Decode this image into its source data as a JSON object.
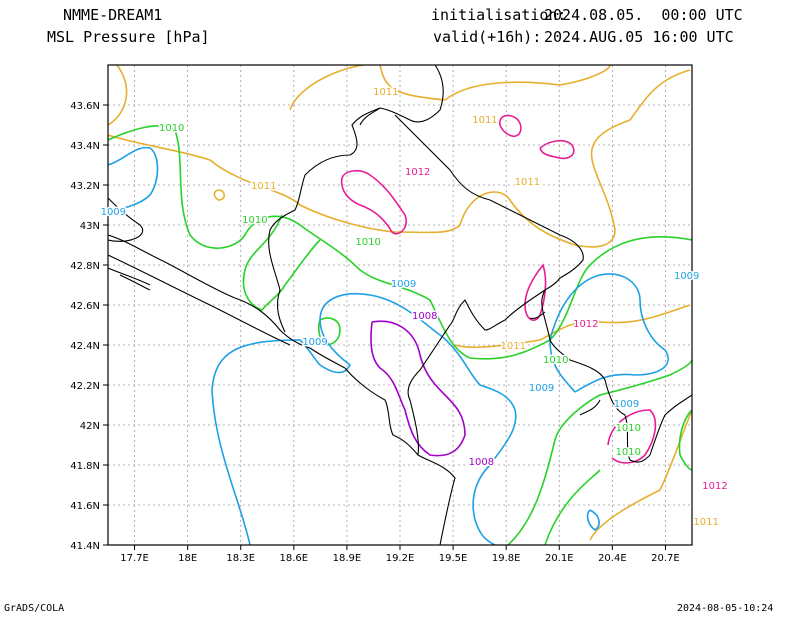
{
  "header": {
    "model": "NMME-DREAM1",
    "field": "MSL Pressure [hPa]",
    "init_label": "initialisation:",
    "init_value": "2024.08.05.  00:00 UTC",
    "valid_label": "valid(+16h):",
    "valid_value": "2024.AUG.05 16:00 UTC"
  },
  "footer": {
    "left": "GrADS/COLA",
    "right": "2024-08-05-10:24"
  },
  "axes": {
    "lon_ticks": [
      "17.7E",
      "18E",
      "18.3E",
      "18.6E",
      "18.9E",
      "19.2E",
      "19.5E",
      "19.8E",
      "20.1E",
      "20.4E",
      "20.7E"
    ],
    "lat_ticks": [
      "43.6N",
      "43.4N",
      "43.2N",
      "43N",
      "42.8N",
      "42.6N",
      "42.4N",
      "42.2N",
      "42N",
      "41.8N",
      "41.6N",
      "41.4N"
    ],
    "grid": true
  },
  "colors": {
    "c1008": "#a000c8",
    "c1009": "#1ea0e6",
    "c1010": "#28d228",
    "c1011": "#e6af2d",
    "c1012": "#e61e96",
    "coast": "#000000"
  },
  "contour_labels": [
    {
      "text": "1011",
      "lon": 19.12,
      "lat": 43.67,
      "level": 1011
    },
    {
      "text": "1011",
      "lon": 19.68,
      "lat": 43.53,
      "level": 1011
    },
    {
      "text": "1011",
      "lon": 18.43,
      "lat": 43.2,
      "level": 1011
    },
    {
      "text": "1011",
      "lon": 19.92,
      "lat": 43.22,
      "level": 1011
    },
    {
      "text": "1011",
      "lon": 19.84,
      "lat": 42.4,
      "level": 1011
    },
    {
      "text": "1011",
      "lon": 20.93,
      "lat": 41.52,
      "level": 1011
    },
    {
      "text": "1010",
      "lon": 17.91,
      "lat": 43.49,
      "level": 1010
    },
    {
      "text": "1010",
      "lon": 18.38,
      "lat": 43.03,
      "level": 1010
    },
    {
      "text": "1010",
      "lon": 19.02,
      "lat": 42.92,
      "level": 1010
    },
    {
      "text": "1010",
      "lon": 20.08,
      "lat": 42.33,
      "level": 1010
    },
    {
      "text": "1010",
      "lon": 20.49,
      "lat": 41.99,
      "level": 1010
    },
    {
      "text": "1010",
      "lon": 20.49,
      "lat": 41.87,
      "level": 1010
    },
    {
      "text": "1009",
      "lon": 17.58,
      "lat": 43.07,
      "level": 1009
    },
    {
      "text": "1009",
      "lon": 19.22,
      "lat": 42.71,
      "level": 1009
    },
    {
      "text": "1009",
      "lon": 18.72,
      "lat": 42.42,
      "level": 1009
    },
    {
      "text": "1009",
      "lon": 20.0,
      "lat": 42.19,
      "level": 1009
    },
    {
      "text": "1009",
      "lon": 20.82,
      "lat": 42.75,
      "level": 1009
    },
    {
      "text": "1009",
      "lon": 20.48,
      "lat": 42.11,
      "level": 1009
    },
    {
      "text": "1008",
      "lon": 19.34,
      "lat": 42.55,
      "level": 1008
    },
    {
      "text": "1008",
      "lon": 19.66,
      "lat": 41.82,
      "level": 1008
    },
    {
      "text": "1012",
      "lon": 19.3,
      "lat": 43.27,
      "level": 1012
    },
    {
      "text": "1012",
      "lon": 20.25,
      "lat": 42.51,
      "level": 1012
    },
    {
      "text": "1012",
      "lon": 20.98,
      "lat": 41.7,
      "level": 1012
    }
  ]
}
